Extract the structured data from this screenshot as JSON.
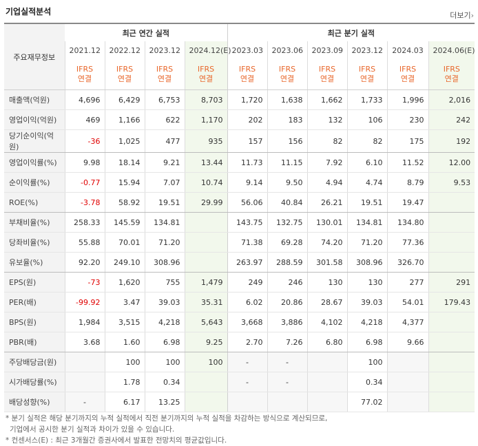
{
  "title": "기업실적분석",
  "more_label": "더보기",
  "more_icon": "chevron-right-icon",
  "header": {
    "row_header": "주요재무정보",
    "annual_label": "최근 연간 실적",
    "quarter_label": "최근 분기 실적",
    "ifrs_line1": "IFRS",
    "ifrs_line2": "연결",
    "periods": [
      "2021.12",
      "2022.12",
      "2023.12",
      "2024.12(E)",
      "2023.03",
      "2023.06",
      "2023.09",
      "2023.12",
      "2024.03",
      "2024.06(E)"
    ]
  },
  "rows": [
    {
      "label": "매출액(억원)",
      "values": [
        "4,696",
        "6,429",
        "6,753",
        "8,703",
        "1,720",
        "1,638",
        "1,662",
        "1,733",
        "1,996",
        "2,016"
      ]
    },
    {
      "label": "영업이익(억원)",
      "values": [
        "469",
        "1,166",
        "622",
        "1,170",
        "202",
        "183",
        "132",
        "106",
        "230",
        "242"
      ]
    },
    {
      "label": "당기순이익(억원)",
      "values": [
        "-36",
        "1,025",
        "477",
        "935",
        "157",
        "156",
        "82",
        "82",
        "175",
        "192"
      ]
    },
    {
      "label": "영업이익률(%)",
      "values": [
        "9.98",
        "18.14",
        "9.21",
        "13.44",
        "11.73",
        "11.15",
        "7.92",
        "6.10",
        "11.52",
        "12.00"
      ]
    },
    {
      "label": "순이익률(%)",
      "values": [
        "-0.77",
        "15.94",
        "7.07",
        "10.74",
        "9.14",
        "9.50",
        "4.94",
        "4.74",
        "8.79",
        "9.53"
      ]
    },
    {
      "label": "ROE(%)",
      "values": [
        "-3.78",
        "58.92",
        "19.51",
        "29.99",
        "56.06",
        "40.84",
        "26.21",
        "19.51",
        "19.47",
        ""
      ]
    },
    {
      "label": "부채비율(%)",
      "values": [
        "258.33",
        "145.59",
        "134.81",
        "",
        "143.75",
        "132.75",
        "130.01",
        "134.81",
        "134.80",
        ""
      ]
    },
    {
      "label": "당좌비율(%)",
      "values": [
        "55.88",
        "70.01",
        "71.20",
        "",
        "71.38",
        "69.28",
        "74.20",
        "71.20",
        "77.36",
        ""
      ]
    },
    {
      "label": "유보율(%)",
      "values": [
        "92.20",
        "249.10",
        "308.96",
        "",
        "263.97",
        "288.59",
        "301.58",
        "308.96",
        "326.70",
        ""
      ]
    },
    {
      "label": "EPS(원)",
      "values": [
        "-73",
        "1,620",
        "755",
        "1,479",
        "249",
        "246",
        "130",
        "130",
        "277",
        "291"
      ]
    },
    {
      "label": "PER(배)",
      "values": [
        "-99.92",
        "3.47",
        "39.03",
        "35.31",
        "6.02",
        "20.86",
        "28.67",
        "39.03",
        "54.01",
        "179.43"
      ]
    },
    {
      "label": "BPS(원)",
      "values": [
        "1,984",
        "3,515",
        "4,218",
        "5,643",
        "3,668",
        "3,886",
        "4,102",
        "4,218",
        "4,377",
        ""
      ]
    },
    {
      "label": "PBR(배)",
      "values": [
        "3.68",
        "1.60",
        "6.98",
        "9.25",
        "2.70",
        "7.26",
        "6.80",
        "6.98",
        "9.66",
        ""
      ]
    },
    {
      "label": "주당배당금(원)",
      "values": [
        "",
        "100",
        "100",
        "100",
        "-",
        "-",
        "",
        "100",
        "",
        ""
      ]
    },
    {
      "label": "시가배당률(%)",
      "values": [
        "",
        "1.78",
        "0.34",
        "",
        "-",
        "-",
        "",
        "0.34",
        "",
        ""
      ]
    },
    {
      "label": "배당성향(%)",
      "values": [
        "-",
        "6.17",
        "13.25",
        "",
        "",
        "",
        "",
        "77.02",
        "",
        ""
      ]
    }
  ],
  "notes": [
    "분기 실적은 해당 분기까지의 누적 실적에서 직전 분기까지의 누적 실적을 차감하는 방식으로 계산되므로,",
    "기업에서 공시한 분기 실적과 차이가 있을 수 있습니다.",
    "컨센서스(E) : 최근 3개월간 증권사에서 발표한 전망치의 평균값입니다."
  ]
}
